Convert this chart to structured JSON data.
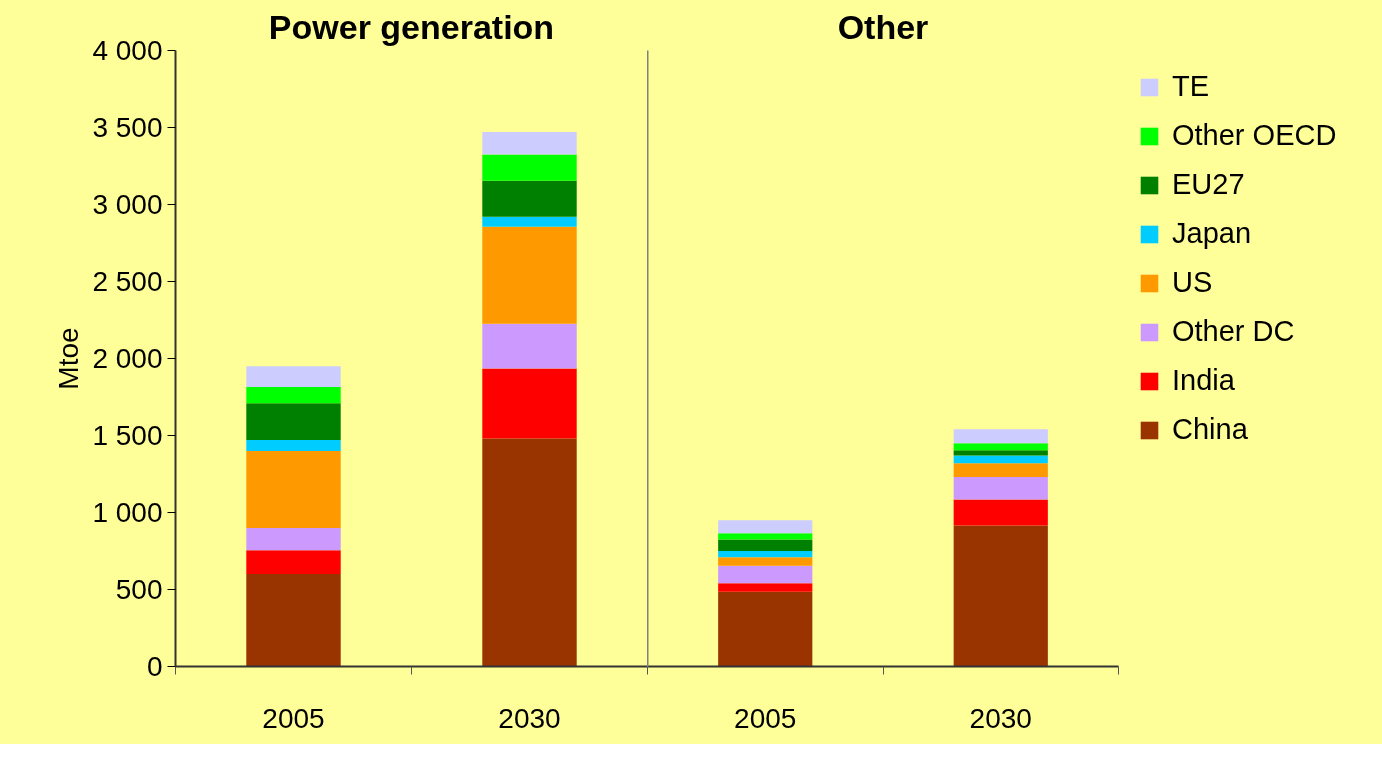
{
  "chart_data": [
    {
      "type": "bar",
      "title": "Power generation",
      "ylabel": "Mtoe",
      "categories": [
        "2005",
        "2030"
      ],
      "stacked": true,
      "legend": false,
      "grid": false,
      "ylim": [
        0,
        4000
      ],
      "yticks": [
        0,
        500,
        {
          "value": 1000,
          "label": "1 000"
        },
        {
          "value": 1500,
          "label": "1 500"
        },
        {
          "value": 2000,
          "label": "2 000"
        },
        {
          "value": 2500,
          "label": "2 500"
        },
        {
          "value": 3000,
          "label": "3 000"
        },
        {
          "value": 3500,
          "label": "3 500"
        },
        {
          "value": 4000,
          "label": "4 000"
        }
      ],
      "series": [
        {
          "color": "#993300",
          "values": [
            600,
            1480
          ]
        },
        {
          "color": "#ff0000",
          "values": [
            155,
            455
          ]
        },
        {
          "color": "#cc99ff",
          "values": [
            145,
            290
          ]
        },
        {
          "color": "#ff9900",
          "values": [
            500,
            630
          ]
        },
        {
          "color": "#00ccff",
          "values": [
            70,
            65
          ]
        },
        {
          "color": "#008000",
          "values": [
            240,
            235
          ]
        },
        {
          "color": "#00ff00",
          "values": [
            105,
            170
          ]
        },
        {
          "color": "#ccccff",
          "values": [
            135,
            145
          ]
        }
      ]
    },
    {
      "type": "bar",
      "title": "Other",
      "categories": [
        "2005",
        "2030"
      ],
      "stacked": true,
      "legend": "right",
      "grid": false,
      "tick_labels": "x",
      "ylim": [
        0,
        4000
      ],
      "series": [
        {
          "name": "China",
          "color": "#993300",
          "values": [
            485,
            915
          ]
        },
        {
          "name": "India",
          "color": "#ff0000",
          "values": [
            55,
            170
          ]
        },
        {
          "name": "Other DC",
          "color": "#cc99ff",
          "values": [
            115,
            145
          ]
        },
        {
          "name": "US",
          "color": "#ff9900",
          "values": [
            55,
            90
          ]
        },
        {
          "name": "Japan",
          "color": "#00ccff",
          "values": [
            40,
            50
          ]
        },
        {
          "name": "EU27",
          "color": "#008000",
          "values": [
            75,
            35
          ]
        },
        {
          "name": "Other OECD",
          "color": "#00ff00",
          "values": [
            40,
            45
          ]
        },
        {
          "name": "TE",
          "color": "#ccccff",
          "values": [
            85,
            90
          ]
        }
      ]
    }
  ]
}
